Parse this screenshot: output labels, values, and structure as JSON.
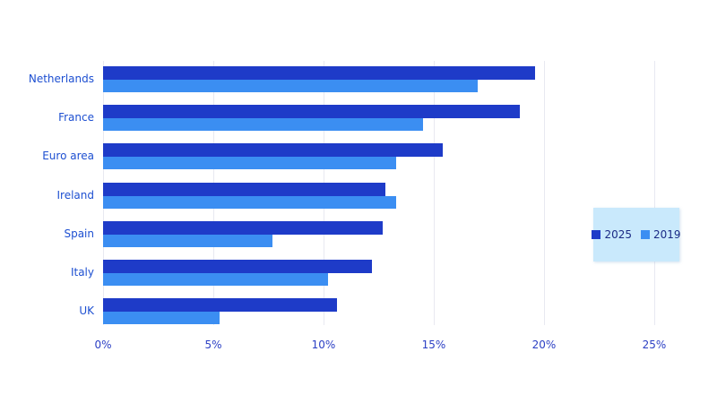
{
  "chart_data": {
    "type": "bar",
    "orientation": "horizontal",
    "title": "",
    "xlabel": "",
    "ylabel": "",
    "categories": [
      "Netherlands",
      "France",
      "Euro area",
      "Ireland",
      "Spain",
      "Italy",
      "UK"
    ],
    "series": [
      {
        "name": "2025",
        "color": "#1e3bc8",
        "values": [
          19.6,
          18.9,
          15.4,
          12.8,
          12.7,
          12.2,
          10.6
        ]
      },
      {
        "name": "2019",
        "color": "#3b8ef2",
        "values": [
          17.0,
          14.5,
          13.3,
          13.3,
          7.7,
          10.2,
          5.3
        ]
      }
    ],
    "x_ticks": [
      "0%",
      "5%",
      "10%",
      "15%",
      "20%",
      "25%"
    ],
    "x_tick_values": [
      0,
      5,
      10,
      15,
      20,
      25
    ],
    "xlim": [
      0,
      26.2
    ],
    "grid": "vertical-only",
    "legend": {
      "position": "right-middle",
      "background": "#c9e9fc",
      "entries": [
        "2025",
        "2019"
      ]
    },
    "colors": {
      "axis_label_text": "#2b3fc4",
      "category_label_text": "#1d4fd1",
      "gridline": "#e8e9f1",
      "legend_text": "#1a2a85"
    }
  }
}
